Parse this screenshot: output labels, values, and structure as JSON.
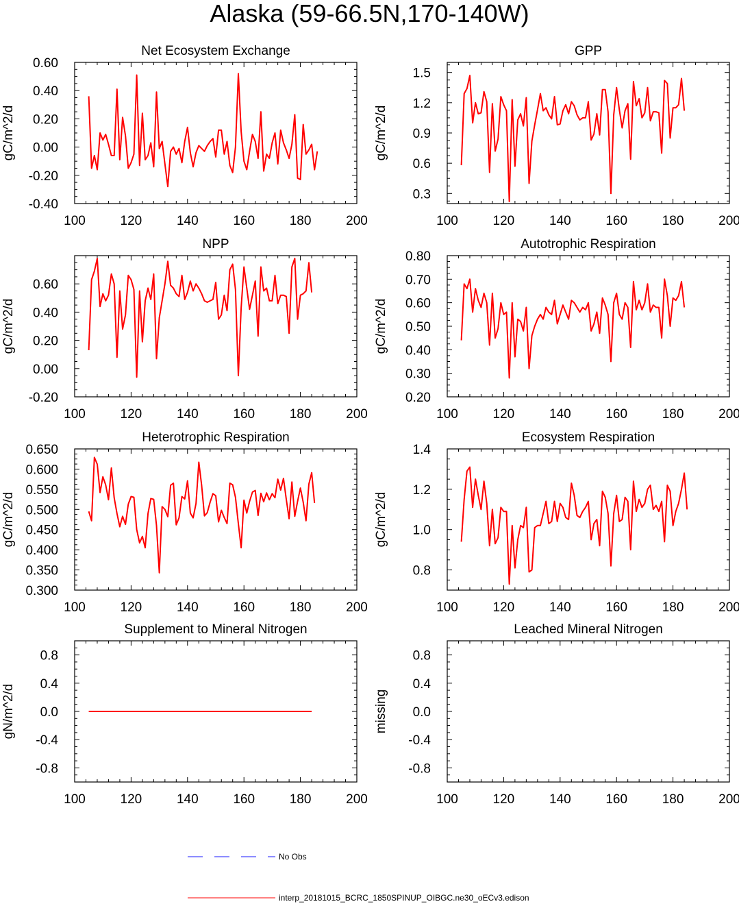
{
  "title": "Alaska (59-66.5N,170-140W)",
  "legend": [
    {
      "label": "No Obs",
      "color": "#1a1aff",
      "dash": true
    },
    {
      "label": "interp_20181015_BCRC_1850SPINUP_OIBGC.ne30_oECv3.edison",
      "color": "#ff0000",
      "dash": false
    }
  ],
  "chart_data": [
    {
      "type": "line",
      "title": "Net Ecosystem Exchange",
      "ylabel": "gC/m^2/d",
      "xlim": [
        100,
        200
      ],
      "ylim": [
        -0.4,
        0.6
      ],
      "xticks": [
        100,
        120,
        140,
        160,
        180,
        200
      ],
      "yticks": [
        -0.4,
        -0.2,
        0.0,
        0.2,
        0.4,
        0.6
      ],
      "ytick_labels": [
        "-0.40",
        "-0.20",
        "0.00",
        "0.20",
        "0.40",
        "0.60"
      ],
      "series": [
        {
          "color": "#ff0000",
          "x_start": 105,
          "values": [
            0.36,
            -0.15,
            -0.06,
            -0.16,
            0.1,
            0.05,
            0.09,
            0.02,
            -0.06,
            -0.06,
            0.41,
            -0.09,
            0.21,
            0.08,
            -0.15,
            -0.11,
            -0.05,
            0.51,
            -0.13,
            0.24,
            -0.09,
            -0.06,
            0.03,
            -0.14,
            0.39,
            -0.01,
            0.04,
            -0.12,
            -0.28,
            -0.03,
            0.0,
            -0.05,
            -0.01,
            -0.11,
            0.04,
            0.14,
            -0.04,
            -0.14,
            -0.04,
            0.01,
            -0.01,
            -0.03,
            0.01,
            0.04,
            0.06,
            -0.07,
            0.12,
            0.12,
            -0.05,
            0.04,
            -0.13,
            -0.18,
            0.0,
            0.52,
            0.11,
            -0.1,
            -0.16,
            -0.03,
            0.09,
            0.04,
            -0.08,
            0.25,
            -0.17,
            -0.05,
            -0.08,
            0.03,
            0.1,
            -0.12,
            0.12,
            0.03,
            -0.02,
            -0.08,
            0.02,
            0.23,
            -0.22,
            -0.23,
            0.16,
            -0.05,
            -0.02,
            0.02,
            -0.16,
            -0.03
          ]
        }
      ]
    },
    {
      "type": "line",
      "title": "GPP",
      "ylabel": "gC/m^2/d",
      "xlim": [
        100,
        200
      ],
      "ylim": [
        0.2,
        1.6
      ],
      "xticks": [
        100,
        120,
        140,
        160,
        180,
        200
      ],
      "yticks": [
        0.3,
        0.6,
        0.9,
        1.2,
        1.5
      ],
      "ytick_labels": [
        "0.3",
        "0.6",
        "0.9",
        "1.2",
        "1.5"
      ],
      "series": [
        {
          "color": "#ff0000",
          "x_start": 105,
          "values": [
            0.58,
            1.29,
            1.34,
            1.47,
            1.0,
            1.2,
            1.09,
            1.1,
            1.31,
            1.21,
            0.51,
            1.19,
            0.72,
            0.84,
            1.26,
            1.18,
            1.12,
            0.22,
            1.23,
            0.57,
            1.03,
            1.09,
            0.97,
            1.25,
            0.4,
            0.82,
            0.98,
            1.13,
            1.29,
            1.12,
            1.15,
            1.08,
            1.04,
            1.26,
            0.98,
            0.99,
            1.12,
            1.18,
            1.09,
            1.21,
            1.17,
            1.08,
            1.03,
            1.05,
            1.05,
            1.21,
            0.83,
            0.89,
            1.09,
            0.88,
            1.33,
            1.33,
            1.11,
            0.3,
            1.08,
            1.35,
            1.13,
            0.95,
            1.12,
            1.19,
            0.64,
            1.41,
            1.17,
            1.24,
            1.05,
            1.1,
            1.35,
            1.02,
            1.11,
            1.11,
            1.1,
            0.7,
            1.42,
            1.39,
            0.85,
            1.15,
            1.15,
            1.18,
            1.44,
            1.12
          ]
        }
      ]
    },
    {
      "type": "line",
      "title": "NPP",
      "ylabel": "gC/m^2/d",
      "xlim": [
        100,
        200
      ],
      "ylim": [
        -0.2,
        0.8
      ],
      "xticks": [
        100,
        120,
        140,
        160,
        180,
        200
      ],
      "yticks": [
        -0.2,
        0.0,
        0.2,
        0.4,
        0.6
      ],
      "ytick_labels": [
        "-0.20",
        "0.00",
        "0.20",
        "0.40",
        "0.60"
      ],
      "series": [
        {
          "color": "#ff0000",
          "x_start": 105,
          "values": [
            0.13,
            0.63,
            0.69,
            0.78,
            0.44,
            0.53,
            0.48,
            0.52,
            0.67,
            0.6,
            0.08,
            0.55,
            0.28,
            0.38,
            0.66,
            0.63,
            0.56,
            -0.06,
            0.55,
            0.19,
            0.48,
            0.57,
            0.49,
            0.67,
            0.07,
            0.36,
            0.48,
            0.6,
            0.76,
            0.59,
            0.57,
            0.53,
            0.51,
            0.66,
            0.49,
            0.54,
            0.62,
            0.55,
            0.6,
            0.57,
            0.53,
            0.48,
            0.47,
            0.48,
            0.49,
            0.61,
            0.35,
            0.38,
            0.52,
            0.41,
            0.7,
            0.74,
            0.56,
            -0.05,
            0.43,
            0.72,
            0.57,
            0.42,
            0.52,
            0.62,
            0.23,
            0.72,
            0.55,
            0.57,
            0.48,
            0.48,
            0.66,
            0.46,
            0.52,
            0.52,
            0.51,
            0.25,
            0.72,
            0.78,
            0.35,
            0.52,
            0.53,
            0.55,
            0.75,
            0.54
          ]
        }
      ]
    },
    {
      "type": "line",
      "title": "Autotrophic Respiration",
      "ylabel": "gC/m^2/d",
      "xlim": [
        100,
        200
      ],
      "ylim": [
        0.2,
        0.8
      ],
      "xticks": [
        100,
        120,
        140,
        160,
        180,
        200
      ],
      "yticks": [
        0.2,
        0.3,
        0.4,
        0.5,
        0.6,
        0.7,
        0.8
      ],
      "ytick_labels": [
        "0.20",
        "0.30",
        "0.40",
        "0.50",
        "0.60",
        "0.70",
        "0.80"
      ],
      "series": [
        {
          "color": "#ff0000",
          "x_start": 105,
          "values": [
            0.44,
            0.68,
            0.66,
            0.7,
            0.56,
            0.66,
            0.61,
            0.58,
            0.64,
            0.6,
            0.42,
            0.64,
            0.45,
            0.49,
            0.6,
            0.55,
            0.56,
            0.28,
            0.6,
            0.37,
            0.53,
            0.52,
            0.48,
            0.58,
            0.32,
            0.46,
            0.5,
            0.53,
            0.55,
            0.53,
            0.58,
            0.56,
            0.55,
            0.61,
            0.51,
            0.55,
            0.59,
            0.56,
            0.53,
            0.61,
            0.6,
            0.58,
            0.56,
            0.58,
            0.57,
            0.6,
            0.48,
            0.51,
            0.56,
            0.47,
            0.62,
            0.59,
            0.55,
            0.35,
            0.6,
            0.64,
            0.55,
            0.53,
            0.6,
            0.58,
            0.41,
            0.69,
            0.57,
            0.61,
            0.57,
            0.6,
            0.68,
            0.56,
            0.59,
            0.58,
            0.58,
            0.45,
            0.7,
            0.63,
            0.5,
            0.62,
            0.61,
            0.63,
            0.69,
            0.58
          ]
        }
      ]
    },
    {
      "type": "line",
      "title": "Heterotrophic Respiration",
      "ylabel": "gC/m^2/d",
      "xlim": [
        100,
        200
      ],
      "ylim": [
        0.3,
        0.65
      ],
      "xticks": [
        100,
        120,
        140,
        160,
        180,
        200
      ],
      "yticks": [
        0.3,
        0.35,
        0.4,
        0.45,
        0.5,
        0.55,
        0.6,
        0.65
      ],
      "ytick_labels": [
        "0.300",
        "0.350",
        "0.400",
        "0.450",
        "0.500",
        "0.550",
        "0.600",
        "0.650"
      ],
      "series": [
        {
          "color": "#ff0000",
          "x_start": 105,
          "values": [
            0.495,
            0.472,
            0.629,
            0.612,
            0.542,
            0.581,
            0.561,
            0.524,
            0.603,
            0.529,
            0.49,
            0.457,
            0.483,
            0.463,
            0.513,
            0.532,
            0.53,
            0.45,
            0.417,
            0.433,
            0.405,
            0.49,
            0.527,
            0.525,
            0.46,
            0.343,
            0.507,
            0.5,
            0.482,
            0.56,
            0.565,
            0.462,
            0.479,
            0.532,
            0.526,
            0.571,
            0.491,
            0.479,
            0.515,
            0.617,
            0.56,
            0.484,
            0.492,
            0.518,
            0.539,
            0.534,
            0.469,
            0.498,
            0.48,
            0.465,
            0.565,
            0.561,
            0.53,
            0.465,
            0.405,
            0.523,
            0.491,
            0.52,
            0.543,
            0.547,
            0.485,
            0.54,
            0.519,
            0.541,
            0.524,
            0.539,
            0.529,
            0.575,
            0.548,
            0.577,
            0.525,
            0.477,
            0.568,
            0.483,
            0.52,
            0.553,
            0.518,
            0.472,
            0.563,
            0.591,
            0.516
          ]
        }
      ]
    },
    {
      "type": "line",
      "title": "Ecosystem Respiration",
      "ylabel": "gC/m^2/d",
      "xlim": [
        100,
        200
      ],
      "ylim": [
        0.7,
        1.4
      ],
      "xticks": [
        100,
        120,
        140,
        160,
        180,
        200
      ],
      "yticks": [
        0.8,
        1.0,
        1.2,
        1.4
      ],
      "ytick_labels": [
        "0.8",
        "1.0",
        "1.2",
        "1.4"
      ],
      "series": [
        {
          "color": "#ff0000",
          "x_start": 105,
          "values": [
            0.94,
            1.15,
            1.29,
            1.31,
            1.11,
            1.25,
            1.17,
            1.1,
            1.24,
            1.13,
            0.92,
            1.1,
            0.93,
            0.96,
            1.11,
            1.09,
            1.09,
            0.73,
            1.02,
            0.81,
            0.95,
            1.02,
            1.01,
            1.11,
            0.79,
            0.8,
            1.01,
            1.02,
            1.02,
            1.08,
            1.14,
            1.03,
            1.04,
            1.14,
            1.04,
            1.13,
            1.11,
            1.06,
            1.05,
            1.23,
            1.17,
            1.07,
            1.06,
            1.09,
            1.11,
            1.14,
            0.95,
            1.03,
            1.05,
            0.92,
            1.19,
            1.16,
            1.08,
            0.82,
            1.08,
            1.17,
            1.04,
            1.05,
            1.16,
            1.14,
            0.9,
            1.24,
            1.09,
            1.15,
            1.11,
            1.13,
            1.2,
            1.22,
            1.1,
            1.12,
            1.09,
            1.14,
            0.94,
            1.22,
            1.19,
            1.02,
            1.09,
            1.13,
            1.2,
            1.28,
            1.1
          ]
        }
      ]
    },
    {
      "type": "line",
      "title": "Supplement to Mineral Nitrogen",
      "ylabel": "gN/m^2/d",
      "xlim": [
        100,
        200
      ],
      "ylim": [
        -1.0,
        1.0
      ],
      "xticks": [
        100,
        120,
        140,
        160,
        180,
        200
      ],
      "yticks": [
        -0.8,
        -0.4,
        0.0,
        0.4,
        0.8
      ],
      "ytick_labels": [
        "-0.8",
        "-0.4",
        "0.0",
        "0.4",
        "0.8"
      ],
      "series": [
        {
          "color": "#ff0000",
          "x_start": 105,
          "x_end": 184,
          "constant": 0.0
        }
      ]
    },
    {
      "type": "line",
      "title": "Leached Mineral Nitrogen",
      "ylabel": "missing",
      "xlim": [
        100,
        200
      ],
      "ylim": [
        -1.0,
        1.0
      ],
      "xticks": [
        100,
        120,
        140,
        160,
        180,
        200
      ],
      "yticks": [
        -0.8,
        -0.4,
        0.0,
        0.4,
        0.8
      ],
      "ytick_labels": [
        "-0.8",
        "-0.4",
        "0.0",
        "0.4",
        "0.8"
      ],
      "series": []
    }
  ]
}
